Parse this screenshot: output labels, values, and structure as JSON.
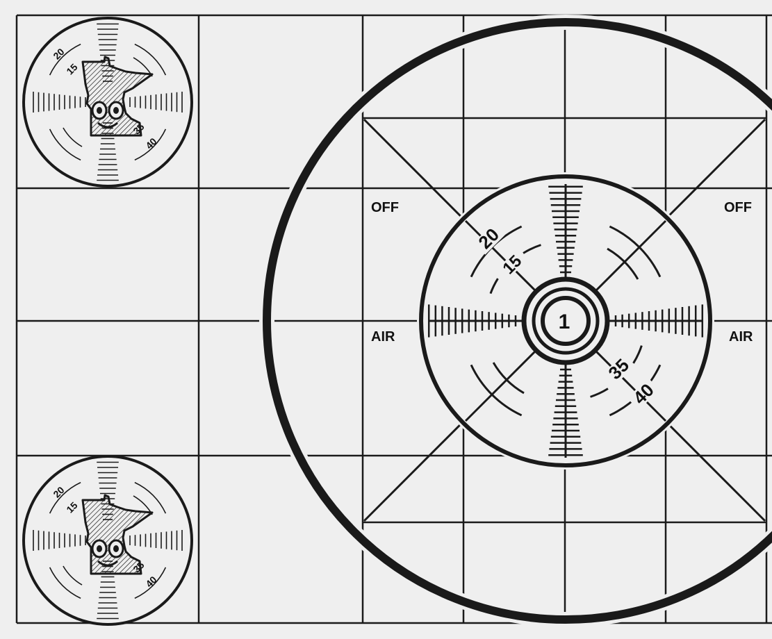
{
  "pattern": {
    "background": "#efefef",
    "ink": "#1a1a1a",
    "side_labels": {
      "left_top": "OFF",
      "left_bottom": "AIR",
      "right_top": "OFF",
      "right_bottom": "AIR"
    },
    "center_number": "1",
    "focus_scale": {
      "upper_left": [
        "20",
        "15"
      ],
      "lower_right": [
        "35",
        "40"
      ]
    },
    "corner_emblems": [
      {
        "name": "upper-left",
        "icon": "minnesota-state-mascot-icon"
      },
      {
        "name": "lower-left",
        "icon": "minnesota-state-mascot-icon"
      }
    ]
  }
}
